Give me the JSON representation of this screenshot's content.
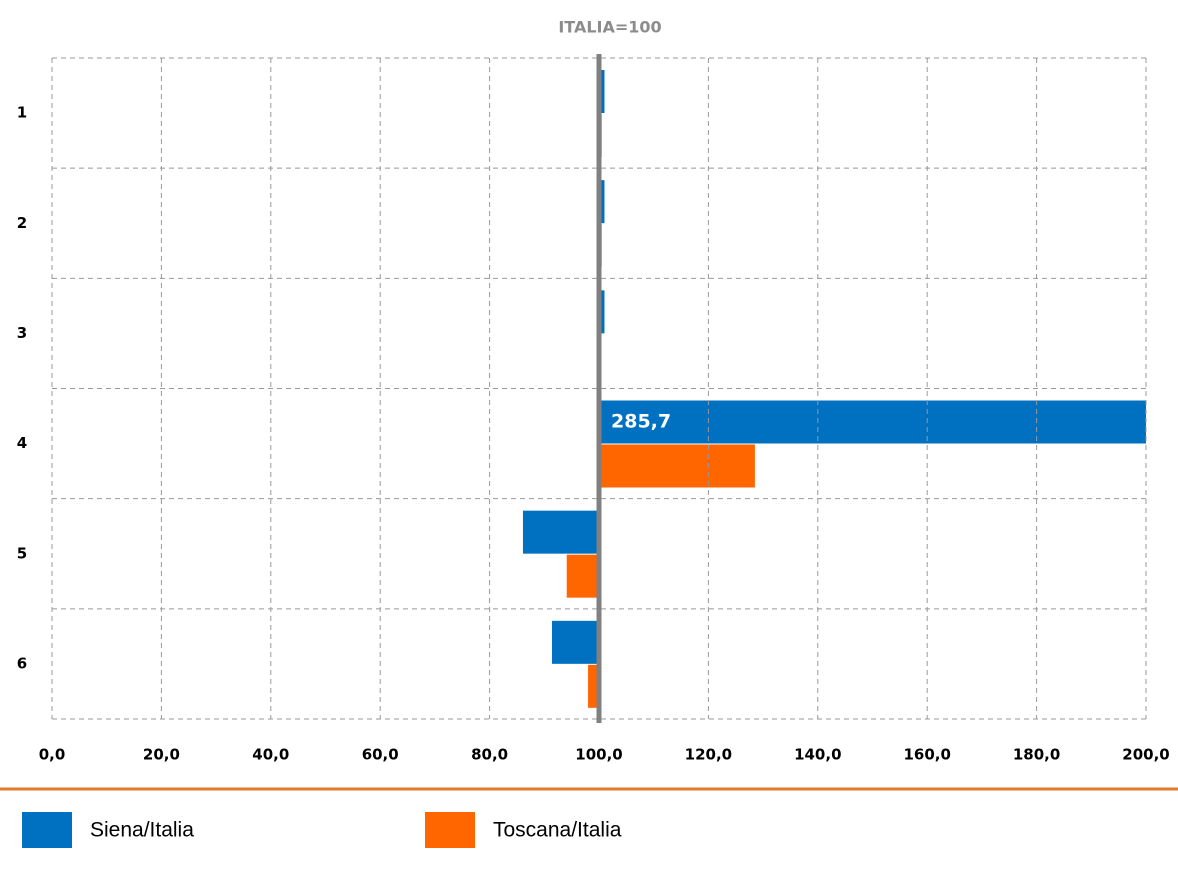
{
  "chart_data": {
    "type": "bar",
    "orientation": "horizontal",
    "title": "ITALIA=100",
    "categories": [
      "1",
      "2",
      "3",
      "4",
      "5",
      "6"
    ],
    "baseline": 100,
    "series": [
      {
        "name": "Siena/Italia",
        "color": "#0070c0",
        "values": [
          101.0,
          101.0,
          101.0,
          285.7,
          86.1,
          91.4
        ],
        "value_labels": [
          null,
          null,
          null,
          "285,7",
          null,
          null
        ]
      },
      {
        "name": "Toscana/Italia",
        "color": "#ff6600",
        "values": [
          100.5,
          100.5,
          100.0,
          128.5,
          94.1,
          98.0
        ]
      }
    ],
    "xlim": [
      0,
      200
    ],
    "xticks": [
      {
        "value": 0,
        "label": "0,0"
      },
      {
        "value": 20,
        "label": "20,0"
      },
      {
        "value": 40,
        "label": "40,0"
      },
      {
        "value": 60,
        "label": "60,0"
      },
      {
        "value": 80,
        "label": "80,0"
      },
      {
        "value": 100,
        "label": "100,0"
      },
      {
        "value": 120,
        "label": "120,0"
      },
      {
        "value": 140,
        "label": "140,0"
      },
      {
        "value": 160,
        "label": "160,0"
      },
      {
        "value": 180,
        "label": "180,0"
      },
      {
        "value": 200,
        "label": "200,0"
      }
    ],
    "grid": true,
    "legend": "bottom"
  }
}
